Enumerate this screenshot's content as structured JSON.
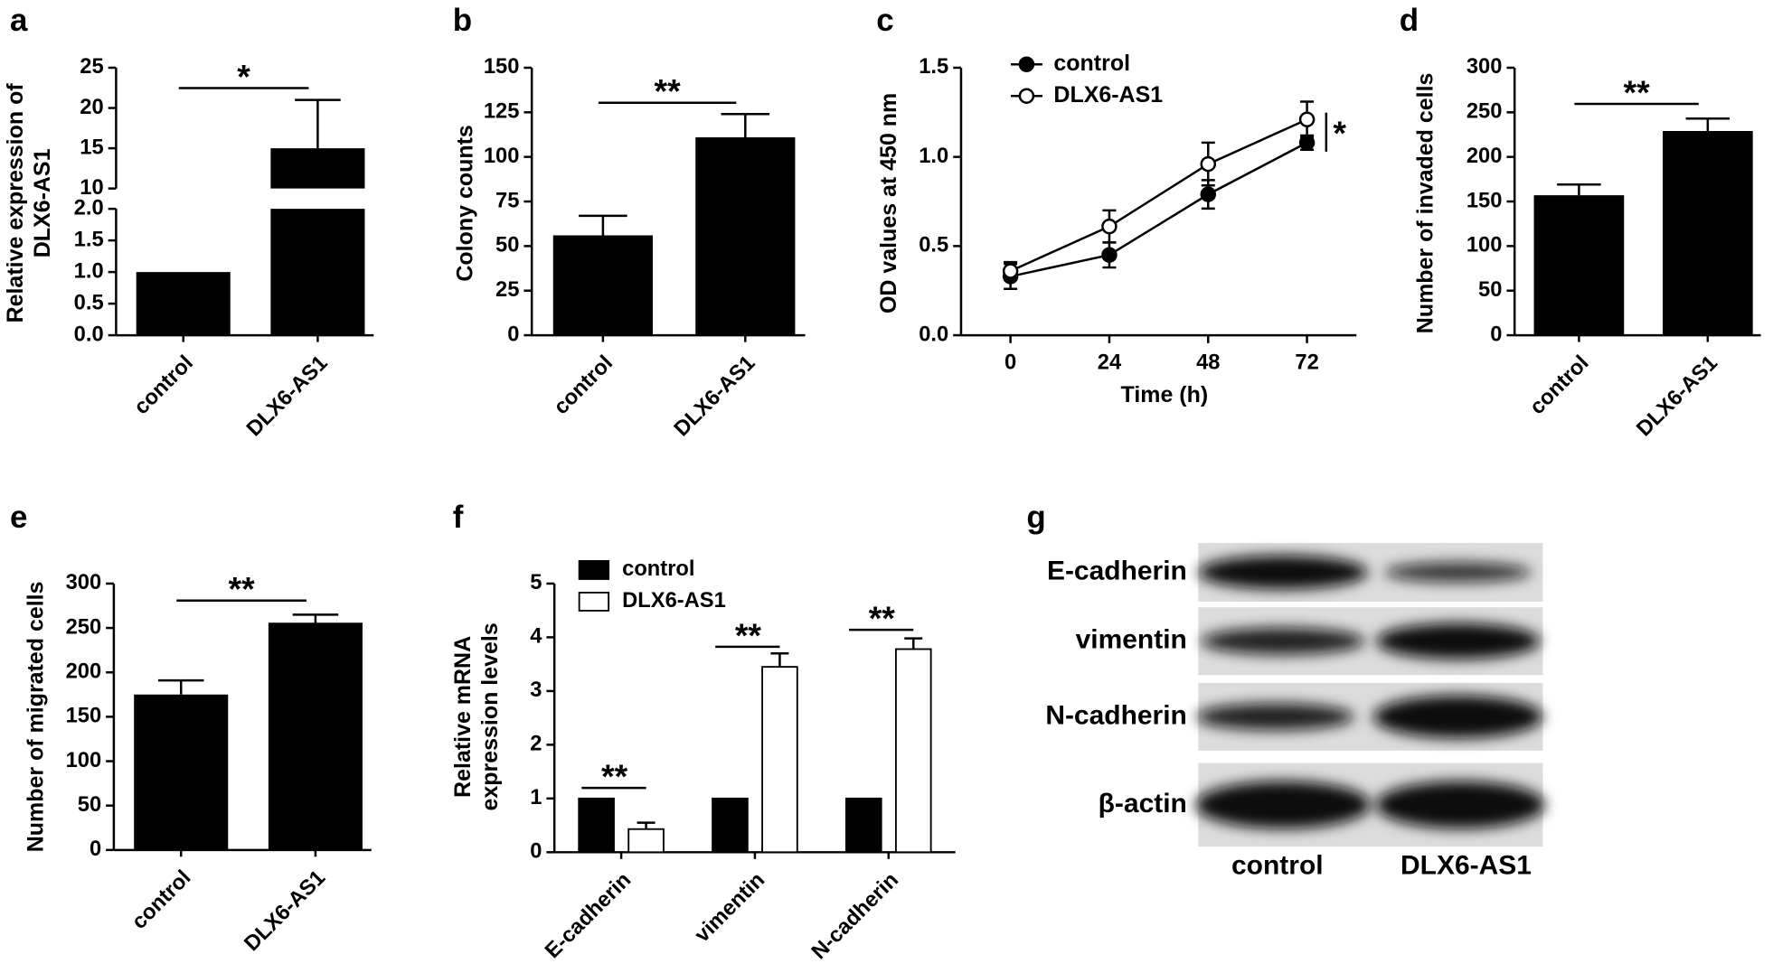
{
  "chart_data": [
    {
      "type": "bar",
      "panel": "a",
      "ylabel": [
        "Relative expression of",
        "DLX6-AS1"
      ],
      "categories": [
        "control",
        "DLX6-AS1"
      ],
      "values": [
        1.0,
        15
      ],
      "errors": [
        0,
        6
      ],
      "color": "#000000",
      "annotation": "*",
      "ylim": [
        0,
        25
      ],
      "ybreak": [
        2,
        10
      ],
      "yticks": [
        {
          "value": 0,
          "label": "0.0"
        },
        0.5,
        {
          "value": 1,
          "label": "1.0"
        },
        1.5,
        {
          "value": 2,
          "label": "2.0"
        },
        10,
        15,
        20,
        25
      ]
    },
    {
      "type": "bar",
      "panel": "b",
      "ylabel": "Colony counts",
      "categories": [
        "control",
        "DLX6-AS1"
      ],
      "values": [
        56,
        111
      ],
      "errors": [
        11,
        13
      ],
      "color": "#000000",
      "annotation": "**",
      "ylim": [
        0,
        150
      ],
      "yticks": [
        0,
        25,
        50,
        75,
        100,
        125,
        150
      ]
    },
    {
      "type": "line",
      "panel": "c",
      "ylabel": "OD values at 450 nm",
      "xlabel": "Time (h)",
      "x": [
        0,
        24,
        48,
        72
      ],
      "series": [
        {
          "name": "control",
          "color": "#000000",
          "fill": "#000000",
          "values": [
            0.33,
            0.45,
            0.79,
            1.08
          ],
          "errors": [
            0.07,
            0.07,
            0.08,
            0.04
          ]
        },
        {
          "name": "DLX6-AS1",
          "color": "#000000",
          "fill": "#ffffff",
          "values": [
            0.36,
            0.61,
            0.96,
            1.21
          ],
          "errors": [
            0.05,
            0.09,
            0.12,
            0.1
          ]
        }
      ],
      "annotation": "*",
      "xlim": [
        -12,
        84
      ],
      "xticks": [
        0,
        24,
        48,
        72
      ],
      "ylim": [
        0,
        1.5
      ],
      "yticks": [
        {
          "value": 0,
          "label": "0.0"
        },
        0.5,
        {
          "value": 1,
          "label": "1.0"
        },
        1.5
      ],
      "legend": "upper left"
    },
    {
      "type": "bar",
      "panel": "d",
      "ylabel": "Number of invaded cells",
      "categories": [
        "control",
        "DLX6-AS1"
      ],
      "values": [
        157,
        229
      ],
      "errors": [
        12,
        14
      ],
      "color": "#000000",
      "annotation": "**",
      "ylim": [
        0,
        300
      ],
      "yticks": [
        0,
        50,
        100,
        150,
        200,
        250,
        300
      ]
    },
    {
      "type": "bar",
      "panel": "e",
      "ylabel": "Number of migrated cells",
      "categories": [
        "control",
        "DLX6-AS1"
      ],
      "values": [
        175,
        256
      ],
      "errors": [
        16,
        9
      ],
      "color": "#000000",
      "annotation": "**",
      "ylim": [
        0,
        300
      ],
      "yticks": [
        0,
        50,
        100,
        150,
        200,
        250,
        300
      ]
    },
    {
      "type": "grouped_bar",
      "panel": "f",
      "ylabel": [
        "Relative mRNA",
        "expression levels"
      ],
      "categories": [
        "E-cadherin",
        "vimentin",
        "N-cadherin"
      ],
      "series": [
        {
          "name": "control",
          "color": "#000000",
          "values": [
            1,
            1,
            1
          ]
        },
        {
          "name": "DLX6-AS1",
          "color": "#ffffff",
          "values": [
            0.43,
            3.45,
            3.78
          ],
          "errors": [
            0.12,
            0.25,
            0.2
          ]
        }
      ],
      "annotations": [
        "**",
        "**",
        "**"
      ],
      "ylim": [
        0,
        5
      ],
      "yticks": [
        0,
        1,
        2,
        3,
        4,
        5
      ],
      "legend": "upper left"
    }
  ],
  "blot": {
    "panel": "g",
    "rows": [
      "E-cadherin",
      "vimentin",
      "N-cadherin",
      "β-actin"
    ],
    "columns": [
      "control",
      "DLX6-AS1"
    ]
  }
}
